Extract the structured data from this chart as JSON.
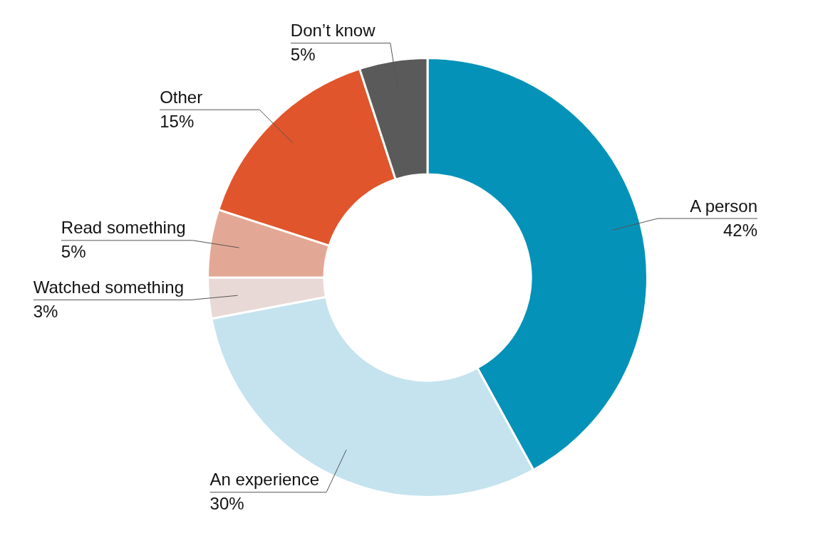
{
  "chart_data": {
    "type": "donut",
    "categories": [
      "A person",
      "An experience",
      "Watched something",
      "Read something",
      "Other",
      "Don’t know"
    ],
    "values": [
      42,
      30,
      3,
      5,
      15,
      5
    ],
    "value_labels": [
      "42%",
      "30%",
      "3%",
      "5%",
      "15%",
      "5%"
    ],
    "colors": [
      "#0592b8",
      "#c4e3ee",
      "#e8d9d6",
      "#e3a895",
      "#e0552b",
      "#5a5a5a"
    ],
    "legend": false
  }
}
